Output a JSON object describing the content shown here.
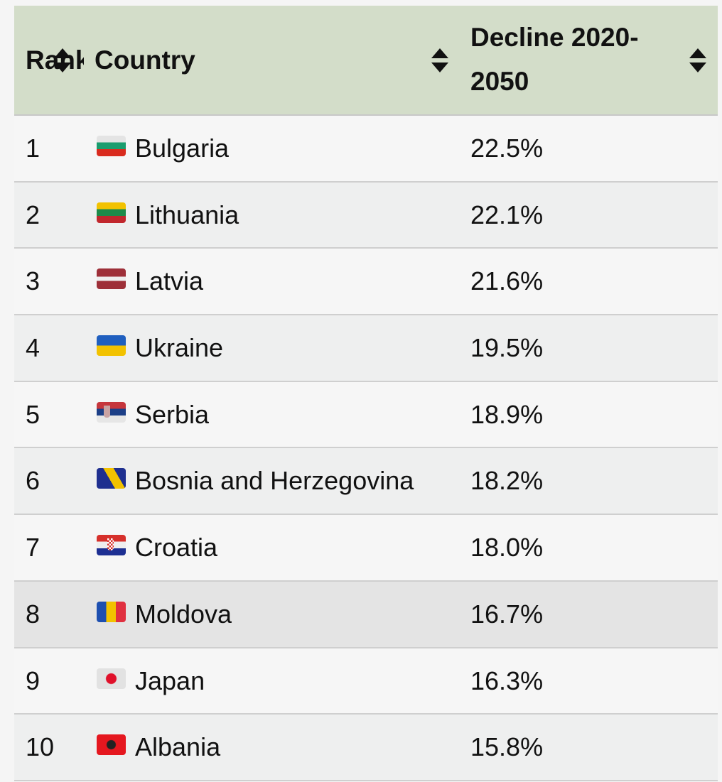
{
  "header": {
    "rank": "Rank",
    "country": "Country",
    "decline": "Decline 2020-2050"
  },
  "rows": [
    {
      "rank": "1",
      "country": "Bulgaria",
      "flag": "bg",
      "decline": "22.5%"
    },
    {
      "rank": "2",
      "country": "Lithuania",
      "flag": "lt",
      "decline": "22.1%"
    },
    {
      "rank": "3",
      "country": "Latvia",
      "flag": "lv",
      "decline": "21.6%"
    },
    {
      "rank": "4",
      "country": "Ukraine",
      "flag": "ua",
      "decline": "19.5%"
    },
    {
      "rank": "5",
      "country": "Serbia",
      "flag": "rs",
      "decline": "18.9%"
    },
    {
      "rank": "6",
      "country": "Bosnia and Herzegovina",
      "flag": "ba",
      "decline": "18.2%"
    },
    {
      "rank": "7",
      "country": "Croatia",
      "flag": "hr",
      "decline": "18.0%"
    },
    {
      "rank": "8",
      "country": "Moldova",
      "flag": "md",
      "decline": "16.7%"
    },
    {
      "rank": "9",
      "country": "Japan",
      "flag": "jp",
      "decline": "16.3%"
    },
    {
      "rank": "10",
      "country": "Albania",
      "flag": "al",
      "decline": "15.8%"
    }
  ],
  "colors": {
    "header_bg": "#d3ddc9"
  }
}
